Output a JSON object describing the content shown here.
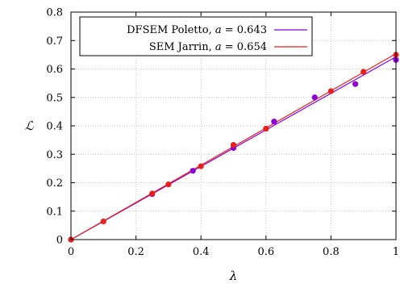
{
  "chart_data": {
    "type": "scatter",
    "xlabel": "λ",
    "ylabel": "ℒ",
    "xlim": [
      0,
      1
    ],
    "ylim": [
      0,
      0.8
    ],
    "x_ticks": [
      "0",
      "0.2",
      "0.4",
      "0.6",
      "0.8",
      "1"
    ],
    "y_ticks": [
      "0",
      "0.1",
      "0.2",
      "0.3",
      "0.4",
      "0.5",
      "0.6",
      "0.7",
      "0.8"
    ],
    "x_tick_values": [
      0,
      0.2,
      0.4,
      0.6,
      0.8,
      1
    ],
    "y_tick_values": [
      0,
      0.1,
      0.2,
      0.3,
      0.4,
      0.5,
      0.6,
      0.7,
      0.8
    ],
    "grid": true,
    "legend_position": "top-right",
    "series": [
      {
        "name": "DFSEM Poletto, a = 0.643",
        "legend_prefix": "DFSEM Poletto, ",
        "legend_var": "a",
        "legend_value": " = 0.643",
        "color": "#8b00d4",
        "slope": 0.643,
        "x": [
          0,
          0.25,
          0.375,
          0.5,
          0.625,
          0.75,
          0.875,
          1.0
        ],
        "y": [
          0,
          0.16,
          0.242,
          0.322,
          0.415,
          0.5,
          0.547,
          0.632
        ]
      },
      {
        "name": "SEM Jarrin, a = 0.654",
        "legend_prefix": "SEM Jarrin, ",
        "legend_var": "a",
        "legend_value": " = 0.654",
        "color": "#e8201a",
        "slope": 0.654,
        "x": [
          0,
          0.1,
          0.25,
          0.3,
          0.4,
          0.5,
          0.6,
          0.8,
          0.9,
          1.0
        ],
        "y": [
          0,
          0.064,
          0.162,
          0.194,
          0.258,
          0.333,
          0.39,
          0.522,
          0.59,
          0.65
        ]
      }
    ]
  }
}
